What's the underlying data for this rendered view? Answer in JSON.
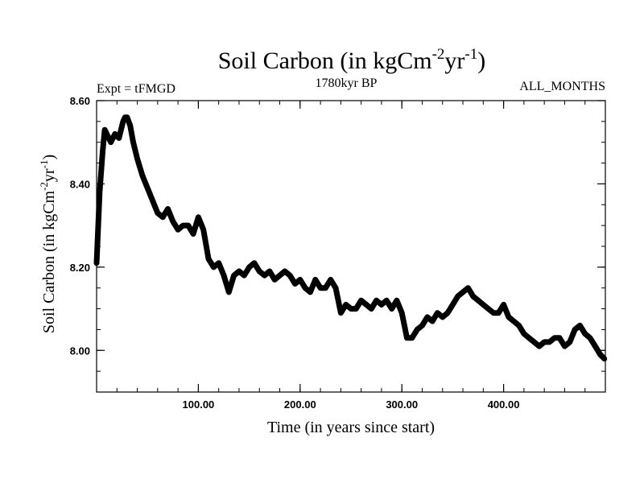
{
  "chart_data": {
    "type": "line",
    "title": {
      "main": "Soil Carbon (in kgCm",
      "sup1": "-2",
      "mid": "yr",
      "sup2": "-1",
      "close": ")"
    },
    "experiment_label": "Expt = tFMGD",
    "period_label": "1780kyr BP",
    "months_label": "ALL_MONTHS",
    "xlabel": "Time (in years since start)",
    "ylabel": {
      "main": "Soil Carbon (in kgCm",
      "sup1": "-2",
      "mid": "yr",
      "sup2": "-1",
      "close": ")"
    },
    "xlim": [
      0,
      500
    ],
    "ylim": [
      7.9,
      8.6
    ],
    "x_ticks": [
      {
        "value": 100,
        "label": "100.00"
      },
      {
        "value": 200,
        "label": "200.00"
      },
      {
        "value": 300,
        "label": "300.00"
      },
      {
        "value": 400,
        "label": "400.00"
      }
    ],
    "y_ticks": [
      {
        "value": 8.0,
        "label": "8.00"
      },
      {
        "value": 8.2,
        "label": "8.20"
      },
      {
        "value": 8.4,
        "label": "8.40"
      },
      {
        "value": 8.6,
        "label": "8.60"
      }
    ],
    "series": [
      {
        "name": "Soil Carbon",
        "x": [
          0,
          3,
          6,
          8,
          10,
          14,
          18,
          22,
          26,
          28,
          30,
          33,
          36,
          40,
          45,
          50,
          55,
          60,
          65,
          70,
          75,
          80,
          85,
          90,
          95,
          100,
          105,
          110,
          115,
          120,
          125,
          130,
          135,
          140,
          145,
          150,
          155,
          160,
          165,
          170,
          175,
          180,
          185,
          190,
          195,
          200,
          205,
          210,
          215,
          220,
          225,
          230,
          235,
          240,
          245,
          250,
          255,
          260,
          265,
          270,
          275,
          280,
          285,
          290,
          295,
          300,
          305,
          310,
          315,
          320,
          325,
          330,
          335,
          340,
          345,
          350,
          355,
          360,
          365,
          370,
          375,
          380,
          385,
          390,
          395,
          400,
          405,
          410,
          415,
          420,
          425,
          430,
          435,
          440,
          445,
          450,
          455,
          460,
          465,
          470,
          475,
          480,
          485,
          490,
          495,
          499
        ],
        "y": [
          8.21,
          8.38,
          8.48,
          8.53,
          8.52,
          8.5,
          8.52,
          8.51,
          8.55,
          8.56,
          8.56,
          8.54,
          8.5,
          8.46,
          8.42,
          8.39,
          8.36,
          8.33,
          8.32,
          8.34,
          8.31,
          8.29,
          8.3,
          8.3,
          8.28,
          8.32,
          8.29,
          8.22,
          8.2,
          8.21,
          8.18,
          8.14,
          8.18,
          8.19,
          8.18,
          8.2,
          8.21,
          8.19,
          8.18,
          8.19,
          8.17,
          8.18,
          8.19,
          8.18,
          8.16,
          8.17,
          8.15,
          8.14,
          8.17,
          8.15,
          8.15,
          8.17,
          8.15,
          8.09,
          8.11,
          8.1,
          8.1,
          8.12,
          8.11,
          8.1,
          8.12,
          8.11,
          8.12,
          8.1,
          8.12,
          8.09,
          8.03,
          8.03,
          8.05,
          8.06,
          8.08,
          8.07,
          8.09,
          8.08,
          8.09,
          8.11,
          8.13,
          8.14,
          8.15,
          8.13,
          8.12,
          8.11,
          8.1,
          8.09,
          8.09,
          8.11,
          8.08,
          8.07,
          8.06,
          8.04,
          8.03,
          8.02,
          8.01,
          8.02,
          8.02,
          8.03,
          8.03,
          8.01,
          8.02,
          8.05,
          8.06,
          8.04,
          8.03,
          8.01,
          7.99,
          7.98
        ]
      }
    ]
  }
}
